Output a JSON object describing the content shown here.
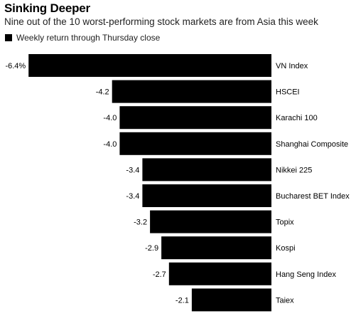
{
  "header": {
    "title": "Sinking Deeper",
    "subtitle": "Nine out of the 10 worst-performing stock markets are from Asia this week"
  },
  "legend": {
    "label": "Weekly return through Thursday close"
  },
  "colors": {
    "bar": "#000000",
    "text": "#000000"
  },
  "chart_data": {
    "type": "bar",
    "orientation": "horizontal",
    "title": "Sinking Deeper",
    "subtitle": "Nine out of the 10 worst-performing stock markets are from Asia this week",
    "series": [
      {
        "name": "Weekly return through Thursday close",
        "values": [
          -6.4,
          -4.2,
          -4.0,
          -4.0,
          -3.4,
          -3.4,
          -3.2,
          -2.9,
          -2.7,
          -2.1
        ]
      }
    ],
    "categories": [
      "VN Index",
      "HSCEI",
      "Karachi 100",
      "Shanghai Composite",
      "Nikkei 225",
      "Bucharest BET Index",
      "Topix",
      "Kospi",
      "Hang Seng Index",
      "Taiex"
    ],
    "data_labels": [
      "-6.4%",
      "-4.2",
      "-4.0",
      "-4.0",
      "-3.4",
      "-3.4",
      "-3.2",
      "-2.9",
      "-2.7",
      "-2.1"
    ],
    "legend_position": "top-left",
    "grid": false
  }
}
